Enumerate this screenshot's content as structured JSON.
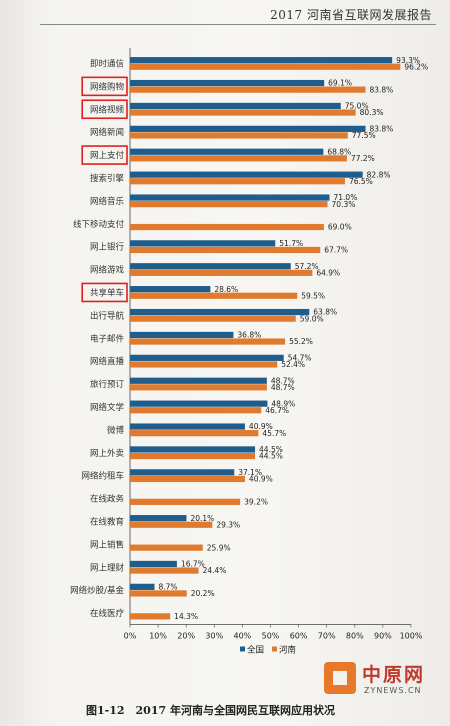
{
  "header": {
    "title": "2017 河南省互联网发展报告"
  },
  "caption": "图1-12　2017 年河南与全国网民互联网应用状况",
  "logo": {
    "text": "中原网",
    "sub": "ZYNEWS.CN"
  },
  "colors": {
    "national": "#1f5d8c",
    "henan": "#e07a2e",
    "highlight": "#e02020"
  },
  "chart_data": {
    "type": "bar",
    "orientation": "horizontal",
    "categories": [
      "即时通信",
      "网络购物",
      "网络视频",
      "网络新闻",
      "网上支付",
      "搜索引擎",
      "网络音乐",
      "线下移动支付",
      "网上银行",
      "网络游戏",
      "共享单车",
      "出行导航",
      "电子邮件",
      "网络直播",
      "旅行预订",
      "网络文学",
      "微博",
      "网上外卖",
      "网络约租车",
      "在线政务",
      "在线教育",
      "网上销售",
      "网上理财",
      "网络炒股/基金",
      "在线医疗"
    ],
    "series": [
      {
        "name": "全国",
        "values": [
          93.3,
          69.1,
          75.0,
          83.8,
          68.8,
          82.8,
          71.0,
          null,
          51.7,
          57.2,
          28.6,
          63.8,
          36.8,
          54.7,
          48.7,
          48.9,
          40.9,
          44.5,
          37.1,
          null,
          20.1,
          null,
          16.7,
          8.7,
          null
        ]
      },
      {
        "name": "河南",
        "values": [
          96.2,
          83.8,
          80.3,
          77.5,
          77.2,
          76.5,
          70.3,
          69.0,
          67.7,
          64.9,
          59.5,
          59.0,
          55.2,
          52.4,
          48.7,
          46.7,
          45.7,
          44.5,
          40.9,
          39.2,
          29.3,
          25.9,
          24.4,
          20.2,
          14.3
        ]
      }
    ],
    "highlighted": [
      "网络购物",
      "网络视频",
      "网上支付",
      "共享单车"
    ],
    "xlim": [
      0,
      100
    ],
    "xticks": [
      "0%",
      "10%",
      "20%",
      "30%",
      "40%",
      "50%",
      "60%",
      "70%",
      "80%",
      "90%",
      "100%"
    ],
    "legend": "bottom-center",
    "grid": false
  }
}
